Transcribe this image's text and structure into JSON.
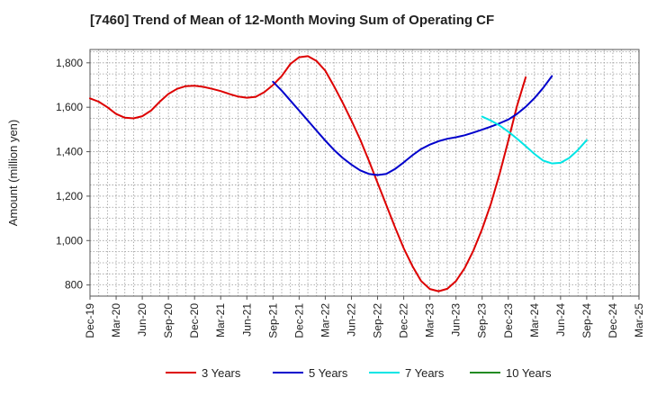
{
  "chart_data": {
    "type": "line",
    "title": "[7460]  Trend of Mean of 12-Month Moving Sum of Operating CF",
    "xlabel": "",
    "ylabel": "Amount (million yen)",
    "ylim": [
      750,
      1860
    ],
    "yticks": [
      800,
      1000,
      1200,
      1400,
      1600,
      1800
    ],
    "ytick_labels": [
      "800",
      "1,000",
      "1,200",
      "1,400",
      "1,600",
      "1,800"
    ],
    "x_tick_labels": [
      "Dec-19",
      "Mar-20",
      "Jun-20",
      "Sep-20",
      "Dec-20",
      "Mar-21",
      "Jun-21",
      "Sep-21",
      "Dec-21",
      "Mar-22",
      "Jun-22",
      "Sep-22",
      "Dec-22",
      "Mar-23",
      "Jun-23",
      "Sep-23",
      "Dec-23",
      "Mar-24",
      "Jun-24",
      "Sep-24",
      "Dec-24",
      "Mar-25"
    ],
    "grid": true,
    "legend_position": "bottom",
    "series": [
      {
        "name": "3 Years",
        "color": "#dd0000",
        "start_index": 0,
        "values": [
          1640,
          1625,
          1600,
          1570,
          1553,
          1550,
          1560,
          1585,
          1625,
          1660,
          1683,
          1695,
          1697,
          1692,
          1683,
          1673,
          1660,
          1648,
          1643,
          1647,
          1668,
          1700,
          1740,
          1795,
          1825,
          1830,
          1808,
          1765,
          1695,
          1620,
          1540,
          1455,
          1360,
          1260,
          1160,
          1060,
          965,
          885,
          818,
          782,
          772,
          783,
          818,
          876,
          955,
          1052,
          1165,
          1300,
          1450,
          1605,
          1735
        ]
      },
      {
        "name": "5 Years",
        "color": "#0000cc",
        "start_index": 21,
        "values": [
          1715,
          1675,
          1630,
          1585,
          1540,
          1495,
          1450,
          1408,
          1372,
          1342,
          1316,
          1300,
          1295,
          1300,
          1322,
          1352,
          1384,
          1412,
          1432,
          1447,
          1458,
          1465,
          1474,
          1486,
          1499,
          1513,
          1528,
          1545,
          1570,
          1602,
          1641,
          1687,
          1740
        ]
      },
      {
        "name": "7 Years",
        "color": "#00e5e5",
        "start_index": 45,
        "values": [
          1558,
          1540,
          1518,
          1490,
          1459,
          1425,
          1390,
          1360,
          1347,
          1350,
          1372,
          1408,
          1452
        ]
      },
      {
        "name": "10 Years",
        "color": "#228b22",
        "start_index": 0,
        "values": []
      }
    ]
  }
}
